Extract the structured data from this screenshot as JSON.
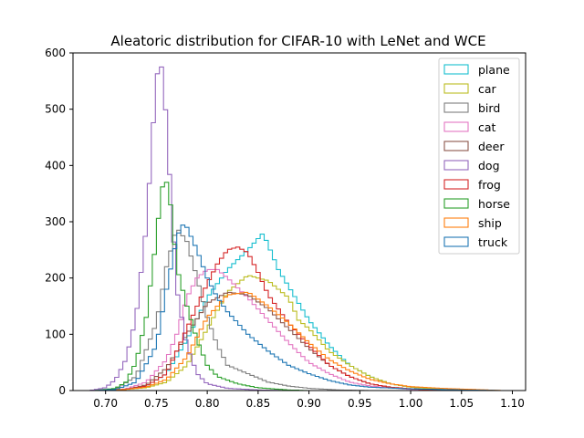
{
  "chart_data": {
    "type": "histogram",
    "title": "Aleatoric distribution for CIFAR-10 with LeNet and WCE",
    "xlabel": "",
    "ylabel": "",
    "xlim": [
      0.668,
      1.113
    ],
    "ylim": [
      0,
      600
    ],
    "xticks": [
      0.7,
      0.75,
      0.8,
      0.85,
      0.9,
      0.95,
      1.0,
      1.05,
      1.1
    ],
    "yticks": [
      0,
      100,
      200,
      300,
      400,
      500,
      600
    ],
    "legend_position": "top-right",
    "grid": false,
    "series": [
      {
        "name": "plane",
        "color": "#17becf",
        "points": [
          [
            0.7,
            0
          ],
          [
            0.72,
            2
          ],
          [
            0.74,
            8
          ],
          [
            0.76,
            30
          ],
          [
            0.78,
            90
          ],
          [
            0.8,
            165
          ],
          [
            0.82,
            215
          ],
          [
            0.84,
            250
          ],
          [
            0.855,
            280
          ],
          [
            0.87,
            215
          ],
          [
            0.885,
            170
          ],
          [
            0.9,
            125
          ],
          [
            0.92,
            80
          ],
          [
            0.94,
            45
          ],
          [
            0.96,
            25
          ],
          [
            0.98,
            12
          ],
          [
            1.0,
            6
          ],
          [
            1.03,
            2
          ],
          [
            1.06,
            0
          ]
        ]
      },
      {
        "name": "car",
        "color": "#bcbd22",
        "points": [
          [
            0.7,
            0
          ],
          [
            0.72,
            2
          ],
          [
            0.74,
            5
          ],
          [
            0.76,
            15
          ],
          [
            0.78,
            45
          ],
          [
            0.8,
            110
          ],
          [
            0.82,
            175
          ],
          [
            0.84,
            205
          ],
          [
            0.86,
            195
          ],
          [
            0.88,
            165
          ],
          [
            0.89,
            125
          ],
          [
            0.9,
            110
          ],
          [
            0.92,
            70
          ],
          [
            0.94,
            45
          ],
          [
            0.96,
            25
          ],
          [
            0.98,
            12
          ],
          [
            1.0,
            6
          ],
          [
            1.03,
            2
          ],
          [
            1.06,
            0
          ]
        ]
      },
      {
        "name": "bird",
        "color": "#7f7f7f",
        "points": [
          [
            0.69,
            0
          ],
          [
            0.71,
            3
          ],
          [
            0.73,
            25
          ],
          [
            0.75,
            120
          ],
          [
            0.76,
            220
          ],
          [
            0.77,
            290
          ],
          [
            0.78,
            265
          ],
          [
            0.79,
            200
          ],
          [
            0.8,
            130
          ],
          [
            0.81,
            80
          ],
          [
            0.82,
            45
          ],
          [
            0.84,
            30
          ],
          [
            0.86,
            15
          ],
          [
            0.88,
            8
          ],
          [
            0.9,
            4
          ],
          [
            0.93,
            1
          ],
          [
            0.96,
            0
          ]
        ]
      },
      {
        "name": "cat",
        "color": "#e377c2",
        "points": [
          [
            0.7,
            0
          ],
          [
            0.72,
            3
          ],
          [
            0.74,
            15
          ],
          [
            0.76,
            55
          ],
          [
            0.77,
            100
          ],
          [
            0.78,
            165
          ],
          [
            0.79,
            200
          ],
          [
            0.8,
            215
          ],
          [
            0.81,
            215
          ],
          [
            0.82,
            200
          ],
          [
            0.84,
            165
          ],
          [
            0.86,
            125
          ],
          [
            0.88,
            85
          ],
          [
            0.9,
            50
          ],
          [
            0.92,
            30
          ],
          [
            0.94,
            15
          ],
          [
            0.96,
            8
          ],
          [
            1.0,
            2
          ],
          [
            1.03,
            0
          ]
        ]
      },
      {
        "name": "deer",
        "color": "#8c564b",
        "points": [
          [
            0.7,
            0
          ],
          [
            0.72,
            2
          ],
          [
            0.74,
            10
          ],
          [
            0.76,
            40
          ],
          [
            0.78,
            100
          ],
          [
            0.8,
            155
          ],
          [
            0.82,
            175
          ],
          [
            0.84,
            170
          ],
          [
            0.86,
            145
          ],
          [
            0.88,
            110
          ],
          [
            0.9,
            75
          ],
          [
            0.92,
            45
          ],
          [
            0.94,
            25
          ],
          [
            0.96,
            12
          ],
          [
            0.98,
            6
          ],
          [
            1.0,
            3
          ],
          [
            1.03,
            1
          ],
          [
            1.06,
            0
          ]
        ]
      },
      {
        "name": "dog",
        "color": "#9467bd",
        "points": [
          [
            0.685,
            0
          ],
          [
            0.7,
            5
          ],
          [
            0.71,
            20
          ],
          [
            0.72,
            55
          ],
          [
            0.73,
            130
          ],
          [
            0.74,
            290
          ],
          [
            0.745,
            420
          ],
          [
            0.75,
            560
          ],
          [
            0.755,
            575
          ],
          [
            0.76,
            480
          ],
          [
            0.765,
            320
          ],
          [
            0.77,
            180
          ],
          [
            0.78,
            80
          ],
          [
            0.79,
            30
          ],
          [
            0.8,
            12
          ],
          [
            0.82,
            4
          ],
          [
            0.85,
            1
          ],
          [
            0.88,
            0
          ]
        ]
      },
      {
        "name": "frog",
        "color": "#d62728",
        "points": [
          [
            0.7,
            0
          ],
          [
            0.72,
            2
          ],
          [
            0.74,
            8
          ],
          [
            0.76,
            30
          ],
          [
            0.78,
            110
          ],
          [
            0.8,
            190
          ],
          [
            0.81,
            225
          ],
          [
            0.82,
            250
          ],
          [
            0.83,
            255
          ],
          [
            0.84,
            245
          ],
          [
            0.85,
            210
          ],
          [
            0.86,
            170
          ],
          [
            0.88,
            120
          ],
          [
            0.9,
            80
          ],
          [
            0.92,
            45
          ],
          [
            0.94,
            25
          ],
          [
            0.96,
            12
          ],
          [
            0.98,
            6
          ],
          [
            1.01,
            2
          ],
          [
            1.04,
            0
          ]
        ]
      },
      {
        "name": "horse",
        "color": "#2ca02c",
        "points": [
          [
            0.69,
            0
          ],
          [
            0.71,
            4
          ],
          [
            0.72,
            15
          ],
          [
            0.73,
            50
          ],
          [
            0.74,
            130
          ],
          [
            0.75,
            270
          ],
          [
            0.755,
            360
          ],
          [
            0.76,
            370
          ],
          [
            0.765,
            320
          ],
          [
            0.77,
            220
          ],
          [
            0.78,
            150
          ],
          [
            0.79,
            90
          ],
          [
            0.8,
            45
          ],
          [
            0.81,
            25
          ],
          [
            0.83,
            12
          ],
          [
            0.85,
            5
          ],
          [
            0.88,
            1
          ],
          [
            0.9,
            0
          ]
        ]
      },
      {
        "name": "ship",
        "color": "#ff7f0e",
        "points": [
          [
            0.7,
            0
          ],
          [
            0.72,
            2
          ],
          [
            0.74,
            6
          ],
          [
            0.76,
            20
          ],
          [
            0.78,
            60
          ],
          [
            0.8,
            130
          ],
          [
            0.82,
            170
          ],
          [
            0.84,
            175
          ],
          [
            0.86,
            150
          ],
          [
            0.88,
            120
          ],
          [
            0.9,
            85
          ],
          [
            0.92,
            55
          ],
          [
            0.94,
            35
          ],
          [
            0.96,
            20
          ],
          [
            0.98,
            12
          ],
          [
            1.0,
            7
          ],
          [
            1.03,
            4
          ],
          [
            1.06,
            2
          ],
          [
            1.09,
            0
          ]
        ]
      },
      {
        "name": "truck",
        "color": "#1f77b4",
        "points": [
          [
            0.69,
            0
          ],
          [
            0.71,
            2
          ],
          [
            0.73,
            15
          ],
          [
            0.75,
            80
          ],
          [
            0.76,
            180
          ],
          [
            0.77,
            270
          ],
          [
            0.775,
            295
          ],
          [
            0.78,
            290
          ],
          [
            0.79,
            250
          ],
          [
            0.8,
            200
          ],
          [
            0.81,
            165
          ],
          [
            0.82,
            140
          ],
          [
            0.84,
            100
          ],
          [
            0.86,
            70
          ],
          [
            0.88,
            45
          ],
          [
            0.9,
            30
          ],
          [
            0.92,
            18
          ],
          [
            0.94,
            10
          ],
          [
            0.96,
            6
          ],
          [
            1.0,
            3
          ],
          [
            1.05,
            1
          ],
          [
            1.09,
            0
          ]
        ]
      }
    ]
  }
}
